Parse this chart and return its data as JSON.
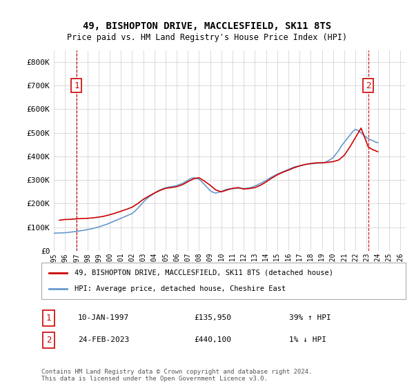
{
  "title": "49, BISHOPTON DRIVE, MACCLESFIELD, SK11 8TS",
  "subtitle": "Price paid vs. HM Land Registry's House Price Index (HPI)",
  "legend_line1": "49, BISHOPTON DRIVE, MACCLESFIELD, SK11 8TS (detached house)",
  "legend_line2": "HPI: Average price, detached house, Cheshire East",
  "point1_label": "1",
  "point1_date": "10-JAN-1997",
  "point1_price": "£135,950",
  "point1_hpi": "39% ↑ HPI",
  "point1_year": 1997.03,
  "point1_value": 135950,
  "point2_label": "2",
  "point2_date": "24-FEB-2023",
  "point2_price": "£440,100",
  "point2_hpi": "1% ↓ HPI",
  "point2_year": 2023.15,
  "point2_value": 440100,
  "footnote": "Contains HM Land Registry data © Crown copyright and database right 2024.\nThis data is licensed under the Open Government Licence v3.0.",
  "red_color": "#cc0000",
  "blue_color": "#6699cc",
  "background_color": "#ffffff",
  "grid_color": "#cccccc",
  "ylim": [
    0,
    850000
  ],
  "xlim_start": 1995.0,
  "xlim_end": 2026.5,
  "hpi_years": [
    1995.0,
    1995.25,
    1995.5,
    1995.75,
    1996.0,
    1996.25,
    1996.5,
    1996.75,
    1997.0,
    1997.25,
    1997.5,
    1997.75,
    1998.0,
    1998.25,
    1998.5,
    1998.75,
    1999.0,
    1999.25,
    1999.5,
    1999.75,
    2000.0,
    2000.25,
    2000.5,
    2000.75,
    2001.0,
    2001.25,
    2001.5,
    2001.75,
    2002.0,
    2002.25,
    2002.5,
    2002.75,
    2003.0,
    2003.25,
    2003.5,
    2003.75,
    2004.0,
    2004.25,
    2004.5,
    2004.75,
    2005.0,
    2005.25,
    2005.5,
    2005.75,
    2006.0,
    2006.25,
    2006.5,
    2006.75,
    2007.0,
    2007.25,
    2007.5,
    2007.75,
    2008.0,
    2008.25,
    2008.5,
    2008.75,
    2009.0,
    2009.25,
    2009.5,
    2009.75,
    2010.0,
    2010.25,
    2010.5,
    2010.75,
    2011.0,
    2011.25,
    2011.5,
    2011.75,
    2012.0,
    2012.25,
    2012.5,
    2012.75,
    2013.0,
    2013.25,
    2013.5,
    2013.75,
    2014.0,
    2014.25,
    2014.5,
    2014.75,
    2015.0,
    2015.25,
    2015.5,
    2015.75,
    2016.0,
    2016.25,
    2016.5,
    2016.75,
    2017.0,
    2017.25,
    2017.5,
    2017.75,
    2018.0,
    2018.25,
    2018.5,
    2018.75,
    2019.0,
    2019.25,
    2019.5,
    2019.75,
    2020.0,
    2020.25,
    2020.5,
    2020.75,
    2021.0,
    2021.25,
    2021.5,
    2021.75,
    2022.0,
    2022.25,
    2022.5,
    2022.75,
    2023.0,
    2023.25,
    2023.5,
    2023.75,
    2024.0
  ],
  "hpi_values": [
    75000,
    75500,
    76000,
    76500,
    77000,
    78000,
    79500,
    81000,
    82500,
    84000,
    86000,
    88000,
    90000,
    92500,
    95000,
    98000,
    101000,
    105000,
    109000,
    113000,
    118000,
    123000,
    128000,
    133000,
    138000,
    143000,
    148000,
    153000,
    158000,
    168000,
    180000,
    193000,
    206000,
    218000,
    228000,
    236000,
    244000,
    252000,
    258000,
    263000,
    267000,
    270000,
    272000,
    274000,
    277000,
    281000,
    286000,
    292000,
    299000,
    306000,
    310000,
    308000,
    303000,
    293000,
    280000,
    268000,
    255000,
    248000,
    245000,
    248000,
    252000,
    257000,
    261000,
    263000,
    263000,
    265000,
    266000,
    265000,
    264000,
    265000,
    267000,
    270000,
    275000,
    280000,
    286000,
    292000,
    298000,
    306000,
    313000,
    319000,
    325000,
    330000,
    335000,
    340000,
    345000,
    350000,
    355000,
    358000,
    360000,
    363000,
    366000,
    368000,
    369000,
    370000,
    371000,
    372000,
    372000,
    375000,
    380000,
    387000,
    395000,
    410000,
    425000,
    445000,
    460000,
    475000,
    490000,
    505000,
    515000,
    510000,
    500000,
    490000,
    480000,
    473000,
    468000,
    462000,
    458000
  ],
  "red_years": [
    1995.5,
    1996.0,
    1996.5,
    1997.03,
    1997.5,
    1998.0,
    1998.5,
    1999.0,
    1999.5,
    2000.0,
    2000.5,
    2001.0,
    2001.5,
    2002.0,
    2002.5,
    2003.0,
    2003.5,
    2004.0,
    2004.5,
    2005.0,
    2005.5,
    2006.0,
    2006.5,
    2007.0,
    2007.5,
    2008.0,
    2008.5,
    2009.0,
    2009.5,
    2010.0,
    2010.5,
    2011.0,
    2011.5,
    2012.0,
    2012.5,
    2013.0,
    2013.5,
    2014.0,
    2014.5,
    2015.0,
    2015.5,
    2016.0,
    2016.5,
    2017.0,
    2017.5,
    2018.0,
    2018.5,
    2019.0,
    2019.5,
    2020.0,
    2020.5,
    2021.0,
    2021.5,
    2022.0,
    2022.5,
    2023.15,
    2023.5,
    2024.0
  ],
  "red_values": [
    130000,
    133000,
    133500,
    135950,
    137000,
    138000,
    140000,
    143000,
    147000,
    153000,
    160000,
    168000,
    176000,
    185000,
    200000,
    218000,
    232000,
    245000,
    256000,
    265000,
    268000,
    272000,
    280000,
    293000,
    305000,
    310000,
    295000,
    278000,
    258000,
    250000,
    258000,
    265000,
    268000,
    262000,
    264000,
    268000,
    278000,
    292000,
    308000,
    322000,
    333000,
    342000,
    352000,
    360000,
    366000,
    370000,
    373000,
    373000,
    375000,
    378000,
    385000,
    405000,
    440000,
    480000,
    520000,
    440100,
    430000,
    420000
  ]
}
